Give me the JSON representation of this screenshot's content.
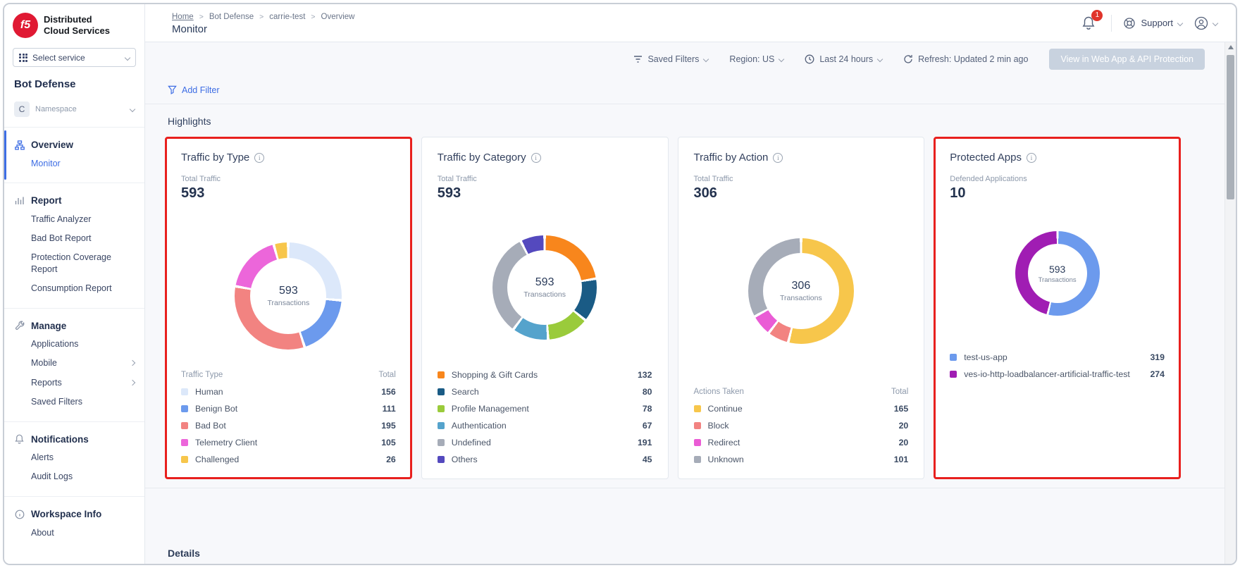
{
  "brand": {
    "logo_text": "f5",
    "name_line1": "Distributed",
    "name_line2": "Cloud Services"
  },
  "sidebar": {
    "select_service_label": "Select service",
    "product_title": "Bot Defense",
    "namespace": {
      "avatar": "C",
      "label": "Namespace"
    },
    "overview": {
      "label": "Overview",
      "monitor": "Monitor"
    },
    "report": {
      "label": "Report",
      "items": [
        "Traffic Analyzer",
        "Bad Bot Report",
        "Protection Coverage Report",
        "Consumption Report"
      ]
    },
    "manage": {
      "label": "Manage",
      "items": [
        "Applications",
        "Mobile",
        "Reports",
        "Saved Filters"
      ]
    },
    "notifications": {
      "label": "Notifications",
      "items": [
        "Alerts",
        "Audit Logs"
      ]
    },
    "workspace": {
      "label": "Workspace Info",
      "items": [
        "About"
      ]
    }
  },
  "topbar": {
    "breadcrumb": {
      "home": "Home",
      "sep": ">",
      "items": [
        "Bot Defense",
        "carrie-test",
        "Overview"
      ]
    },
    "page_title": "Monitor",
    "notification_badge": "1",
    "support_label": "Support"
  },
  "filters": {
    "saved_filters": "Saved Filters",
    "region": "Region: US",
    "time_range": "Last 24 hours",
    "refresh": "Refresh: Updated 2 min ago",
    "view_button": "View in Web App & API Protection",
    "add_filter": "Add Filter"
  },
  "sections": {
    "highlights": "Highlights",
    "details": "Details"
  },
  "chart_data": [
    {
      "type": "donut",
      "title": "Traffic by Type",
      "stat_label": "Total Traffic",
      "stat_value": "593",
      "center_value": "593",
      "center_label": "Transactions",
      "legend_header": {
        "label": "Traffic Type",
        "total": "Total"
      },
      "highlighted": true,
      "series": [
        {
          "name": "Human",
          "value": 156,
          "color": "#DCE8FA"
        },
        {
          "name": "Benign Bot",
          "value": 111,
          "color": "#6C9AED"
        },
        {
          "name": "Bad Bot",
          "value": 195,
          "color": "#F28381"
        },
        {
          "name": "Telemetry Client",
          "value": 105,
          "color": "#EC66DA"
        },
        {
          "name": "Challenged",
          "value": 26,
          "color": "#F7C64B"
        }
      ]
    },
    {
      "type": "donut",
      "title": "Traffic by Category",
      "stat_label": "Total Traffic",
      "stat_value": "593",
      "center_value": "593",
      "center_label": "Transactions",
      "legend_header": null,
      "highlighted": false,
      "series": [
        {
          "name": "Shopping & Gift Cards",
          "value": 132,
          "color": "#F8861C"
        },
        {
          "name": "Search",
          "value": 80,
          "color": "#1A5B85"
        },
        {
          "name": "Profile Management",
          "value": 78,
          "color": "#9ACB3B"
        },
        {
          "name": "Authentication",
          "value": 67,
          "color": "#55A3CC"
        },
        {
          "name": "Undefined",
          "value": 191,
          "color": "#A6ACB8"
        },
        {
          "name": "Others",
          "value": 45,
          "color": "#5449BE"
        }
      ]
    },
    {
      "type": "donut",
      "title": "Traffic by Action",
      "stat_label": "Total Traffic",
      "stat_value": "306",
      "center_value": "306",
      "center_label": "Transactions",
      "legend_header": {
        "label": "Actions Taken",
        "total": "Total"
      },
      "highlighted": false,
      "series": [
        {
          "name": "Continue",
          "value": 165,
          "color": "#F7C64B"
        },
        {
          "name": "Block",
          "value": 20,
          "color": "#F28381"
        },
        {
          "name": "Redirect",
          "value": 20,
          "color": "#EA5CD5"
        },
        {
          "name": "Unknown",
          "value": 101,
          "color": "#A6ACB8"
        }
      ]
    },
    {
      "type": "donut",
      "title": "Protected Apps",
      "stat_label": "Defended Applications",
      "stat_value": "10",
      "center_value": "593",
      "center_label": "Transactions",
      "legend_header": null,
      "highlighted": true,
      "series": [
        {
          "name": "test-us-app",
          "value": 319,
          "color": "#6C9AED"
        },
        {
          "name": "ves-io-http-loadbalancer-artificial-traffic-test",
          "value": 274,
          "color": "#A01DB3"
        }
      ]
    }
  ]
}
